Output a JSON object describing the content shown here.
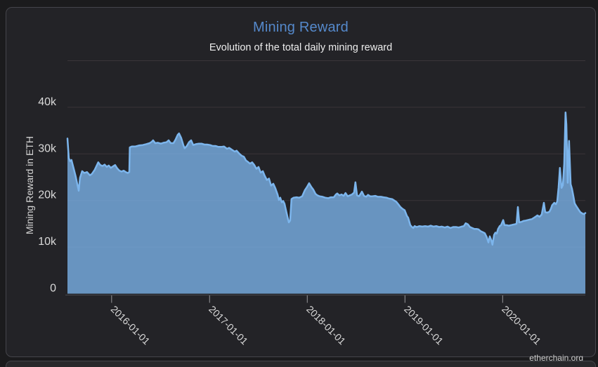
{
  "page": {
    "watermark": "etherchain.org"
  },
  "chart_data": {
    "type": "area",
    "title": "Mining Reward",
    "subtitle": "Evolution of the total daily mining reward",
    "ylabel": "Mining Reward in ETH",
    "xlabel": "",
    "legend": "off",
    "grid": "on",
    "ylim": [
      0,
      50000
    ],
    "xdomain": [
      "2015-07-20",
      "2020-11-05"
    ],
    "yticks": [
      {
        "value": 0,
        "label": "0"
      },
      {
        "value": 10000,
        "label": "10k"
      },
      {
        "value": 20000,
        "label": "20k"
      },
      {
        "value": 30000,
        "label": "30k"
      },
      {
        "value": 40000,
        "label": "40k"
      }
    ],
    "xticks": [
      {
        "date": "2016-01-01",
        "label": "2016-01-01"
      },
      {
        "date": "2017-01-01",
        "label": "2017-01-01"
      },
      {
        "date": "2018-01-01",
        "label": "2018-01-01"
      },
      {
        "date": "2019-01-01",
        "label": "2019-01-01"
      },
      {
        "date": "2020-01-01",
        "label": "2020-01-01"
      }
    ],
    "colors": {
      "page-bg": "#1b1b1d",
      "card-bg": "#232327",
      "border": "#45454b",
      "title": "#5589cb",
      "subtitle": "#ececec",
      "axis-title": "#d4d4d4",
      "axis-label": "#d9d9d9",
      "grid": "#3a3539",
      "axis-line": "#47474b",
      "tick": "#97979b",
      "line": "#7cb5ec",
      "fill": "#7cb5ec",
      "watermark": "#cfcfcf"
    },
    "fill_opacity": 0.78,
    "series": [
      {
        "name": "Mining Reward",
        "points": [
          [
            "2015-07-20",
            33300
          ],
          [
            "2015-07-25",
            29100
          ],
          [
            "2015-07-30",
            28400
          ],
          [
            "2015-08-04",
            28700
          ],
          [
            "2015-08-12",
            26900
          ],
          [
            "2015-08-20",
            25100
          ],
          [
            "2015-08-31",
            22100
          ],
          [
            "2015-09-05",
            24900
          ],
          [
            "2015-09-13",
            26300
          ],
          [
            "2015-09-21",
            25900
          ],
          [
            "2015-10-01",
            26100
          ],
          [
            "2015-10-12",
            25400
          ],
          [
            "2015-10-19",
            25700
          ],
          [
            "2015-10-30",
            26600
          ],
          [
            "2015-11-12",
            28200
          ],
          [
            "2015-11-20",
            27600
          ],
          [
            "2015-11-28",
            27400
          ],
          [
            "2015-12-06",
            27700
          ],
          [
            "2015-12-14",
            27200
          ],
          [
            "2015-12-21",
            27500
          ],
          [
            "2015-12-29",
            27000
          ],
          [
            "2016-01-06",
            27300
          ],
          [
            "2016-01-14",
            27600
          ],
          [
            "2016-01-22",
            26900
          ],
          [
            "2016-01-30",
            26400
          ],
          [
            "2016-02-07",
            26200
          ],
          [
            "2016-02-15",
            26400
          ],
          [
            "2016-02-23",
            26100
          ],
          [
            "2016-03-01",
            25900
          ],
          [
            "2016-03-07",
            26100
          ],
          [
            "2016-03-09",
            31400
          ],
          [
            "2016-03-17",
            31600
          ],
          [
            "2016-03-30",
            31600
          ],
          [
            "2016-04-12",
            31800
          ],
          [
            "2016-04-26",
            31900
          ],
          [
            "2016-05-09",
            32100
          ],
          [
            "2016-05-22",
            32300
          ],
          [
            "2016-05-30",
            32600
          ],
          [
            "2016-06-04",
            32900
          ],
          [
            "2016-06-12",
            32300
          ],
          [
            "2016-06-22",
            32400
          ],
          [
            "2016-07-03",
            32200
          ],
          [
            "2016-07-13",
            32400
          ],
          [
            "2016-07-24",
            32500
          ],
          [
            "2016-08-01",
            32900
          ],
          [
            "2016-08-09",
            32300
          ],
          [
            "2016-08-19",
            32300
          ],
          [
            "2016-08-27",
            33100
          ],
          [
            "2016-09-04",
            34100
          ],
          [
            "2016-09-09",
            34400
          ],
          [
            "2016-09-17",
            33400
          ],
          [
            "2016-09-25",
            31900
          ],
          [
            "2016-09-30",
            31200
          ],
          [
            "2016-10-08",
            31700
          ],
          [
            "2016-10-16",
            32500
          ],
          [
            "2016-10-24",
            32900
          ],
          [
            "2016-11-01",
            31900
          ],
          [
            "2016-11-11",
            32100
          ],
          [
            "2016-11-22",
            32200
          ],
          [
            "2016-12-02",
            32200
          ],
          [
            "2016-12-13",
            32000
          ],
          [
            "2016-12-23",
            32000
          ],
          [
            "2017-01-03",
            31900
          ],
          [
            "2017-01-13",
            31700
          ],
          [
            "2017-01-24",
            31700
          ],
          [
            "2017-02-03",
            31500
          ],
          [
            "2017-02-14",
            31500
          ],
          [
            "2017-02-24",
            31600
          ],
          [
            "2017-03-07",
            31100
          ],
          [
            "2017-03-15",
            31300
          ],
          [
            "2017-03-25",
            30900
          ],
          [
            "2017-04-05",
            30500
          ],
          [
            "2017-04-12",
            30700
          ],
          [
            "2017-04-23",
            30000
          ],
          [
            "2017-05-01",
            29600
          ],
          [
            "2017-05-09",
            29400
          ],
          [
            "2017-05-17",
            28600
          ],
          [
            "2017-05-24",
            28300
          ],
          [
            "2017-06-01",
            27900
          ],
          [
            "2017-06-09",
            28200
          ],
          [
            "2017-06-17",
            27600
          ],
          [
            "2017-06-25",
            26800
          ],
          [
            "2017-07-03",
            27200
          ],
          [
            "2017-07-11",
            26000
          ],
          [
            "2017-07-19",
            26300
          ],
          [
            "2017-07-26",
            25300
          ],
          [
            "2017-08-03",
            24400
          ],
          [
            "2017-08-11",
            24700
          ],
          [
            "2017-08-19",
            23200
          ],
          [
            "2017-08-27",
            23600
          ],
          [
            "2017-09-04",
            22600
          ],
          [
            "2017-09-12",
            21300
          ],
          [
            "2017-09-17",
            20100
          ],
          [
            "2017-09-22",
            20600
          ],
          [
            "2017-09-28",
            19600
          ],
          [
            "2017-10-03",
            19900
          ],
          [
            "2017-10-08",
            19300
          ],
          [
            "2017-10-16",
            17300
          ],
          [
            "2017-10-24",
            15300
          ],
          [
            "2017-10-29",
            15700
          ],
          [
            "2017-11-03",
            20300
          ],
          [
            "2017-11-11",
            20600
          ],
          [
            "2017-11-22",
            20700
          ],
          [
            "2017-12-02",
            20600
          ],
          [
            "2017-12-13",
            20900
          ],
          [
            "2017-12-23",
            22200
          ],
          [
            "2017-12-31",
            22900
          ],
          [
            "2018-01-08",
            23700
          ],
          [
            "2018-01-16",
            22900
          ],
          [
            "2018-01-24",
            22300
          ],
          [
            "2018-02-01",
            21400
          ],
          [
            "2018-02-08",
            21100
          ],
          [
            "2018-02-16",
            20900
          ],
          [
            "2018-02-27",
            20800
          ],
          [
            "2018-03-09",
            20600
          ],
          [
            "2018-03-20",
            20500
          ],
          [
            "2018-03-30",
            20700
          ],
          [
            "2018-04-10",
            20700
          ],
          [
            "2018-04-18",
            21300
          ],
          [
            "2018-04-23",
            21500
          ],
          [
            "2018-05-01",
            21100
          ],
          [
            "2018-05-09",
            21300
          ],
          [
            "2018-05-17",
            21000
          ],
          [
            "2018-05-24",
            21600
          ],
          [
            "2018-06-01",
            20900
          ],
          [
            "2018-06-09",
            21100
          ],
          [
            "2018-06-17",
            21300
          ],
          [
            "2018-06-25",
            21700
          ],
          [
            "2018-06-30",
            23900
          ],
          [
            "2018-07-06",
            21100
          ],
          [
            "2018-07-13",
            20900
          ],
          [
            "2018-07-19",
            21400
          ],
          [
            "2018-07-24",
            21900
          ],
          [
            "2018-08-01",
            21000
          ],
          [
            "2018-08-09",
            20800
          ],
          [
            "2018-08-16",
            21200
          ],
          [
            "2018-08-24",
            20900
          ],
          [
            "2018-09-01",
            20900
          ],
          [
            "2018-09-12",
            21000
          ],
          [
            "2018-09-22",
            20800
          ],
          [
            "2018-10-03",
            20800
          ],
          [
            "2018-10-13",
            20700
          ],
          [
            "2018-10-24",
            20600
          ],
          [
            "2018-11-03",
            20400
          ],
          [
            "2018-11-14",
            20300
          ],
          [
            "2018-11-22",
            20000
          ],
          [
            "2018-11-30",
            19700
          ],
          [
            "2018-12-07",
            19200
          ],
          [
            "2018-12-15",
            18600
          ],
          [
            "2018-12-23",
            18200
          ],
          [
            "2018-12-31",
            17900
          ],
          [
            "2019-01-08",
            16700
          ],
          [
            "2019-01-13",
            16300
          ],
          [
            "2019-01-21",
            14700
          ],
          [
            "2019-01-26",
            14400
          ],
          [
            "2019-02-01",
            14100
          ],
          [
            "2019-02-06",
            14500
          ],
          [
            "2019-02-14",
            14300
          ],
          [
            "2019-02-24",
            14500
          ],
          [
            "2019-03-07",
            14400
          ],
          [
            "2019-03-17",
            14500
          ],
          [
            "2019-03-28",
            14400
          ],
          [
            "2019-04-07",
            14600
          ],
          [
            "2019-04-18",
            14400
          ],
          [
            "2019-04-28",
            14500
          ],
          [
            "2019-05-09",
            14300
          ],
          [
            "2019-05-19",
            14400
          ],
          [
            "2019-05-30",
            14200
          ],
          [
            "2019-06-09",
            14400
          ],
          [
            "2019-06-20",
            14100
          ],
          [
            "2019-06-30",
            14300
          ],
          [
            "2019-07-11",
            14300
          ],
          [
            "2019-07-21",
            14200
          ],
          [
            "2019-08-01",
            14400
          ],
          [
            "2019-08-09",
            14500
          ],
          [
            "2019-08-16",
            15100
          ],
          [
            "2019-08-24",
            14900
          ],
          [
            "2019-09-01",
            14300
          ],
          [
            "2019-09-09",
            14100
          ],
          [
            "2019-09-17",
            13900
          ],
          [
            "2019-09-25",
            13900
          ],
          [
            "2019-10-03",
            13800
          ],
          [
            "2019-10-11",
            13400
          ],
          [
            "2019-10-19",
            13200
          ],
          [
            "2019-10-26",
            13000
          ],
          [
            "2019-11-03",
            12100
          ],
          [
            "2019-11-09",
            11000
          ],
          [
            "2019-11-14",
            12300
          ],
          [
            "2019-11-19",
            11600
          ],
          [
            "2019-11-24",
            10500
          ],
          [
            "2019-11-30",
            12600
          ],
          [
            "2019-12-05",
            13100
          ],
          [
            "2019-12-10",
            12900
          ],
          [
            "2019-12-15",
            13900
          ],
          [
            "2019-12-21",
            14500
          ],
          [
            "2019-12-26",
            14700
          ],
          [
            "2020-01-03",
            15800
          ],
          [
            "2020-01-08",
            14700
          ],
          [
            "2020-01-16",
            14700
          ],
          [
            "2020-01-24",
            14600
          ],
          [
            "2020-02-01",
            14700
          ],
          [
            "2020-02-08",
            14800
          ],
          [
            "2020-02-16",
            14900
          ],
          [
            "2020-02-22",
            15000
          ],
          [
            "2020-02-27",
            18600
          ],
          [
            "2020-03-03",
            15300
          ],
          [
            "2020-03-11",
            15400
          ],
          [
            "2020-03-19",
            15600
          ],
          [
            "2020-03-27",
            15700
          ],
          [
            "2020-04-04",
            15800
          ],
          [
            "2020-04-11",
            15900
          ],
          [
            "2020-04-19",
            16000
          ],
          [
            "2020-04-27",
            16300
          ],
          [
            "2020-05-05",
            16600
          ],
          [
            "2020-05-10",
            16800
          ],
          [
            "2020-05-18",
            16500
          ],
          [
            "2020-05-26",
            17000
          ],
          [
            "2020-06-03",
            19500
          ],
          [
            "2020-06-08",
            17500
          ],
          [
            "2020-06-16",
            17400
          ],
          [
            "2020-06-24",
            17600
          ],
          [
            "2020-06-29",
            18200
          ],
          [
            "2020-07-04",
            19000
          ],
          [
            "2020-07-12",
            19500
          ],
          [
            "2020-07-18",
            19200
          ],
          [
            "2020-07-23",
            19800
          ],
          [
            "2020-07-28",
            22800
          ],
          [
            "2020-08-02",
            27000
          ],
          [
            "2020-08-08",
            22700
          ],
          [
            "2020-08-13",
            23300
          ],
          [
            "2020-08-18",
            27800
          ],
          [
            "2020-08-23",
            38900
          ],
          [
            "2020-08-26",
            36300
          ],
          [
            "2020-08-31",
            23800
          ],
          [
            "2020-09-05",
            32800
          ],
          [
            "2020-09-11",
            23500
          ],
          [
            "2020-09-16",
            22500
          ],
          [
            "2020-09-21",
            21000
          ],
          [
            "2020-09-26",
            19400
          ],
          [
            "2020-10-02",
            18800
          ],
          [
            "2020-10-10",
            18100
          ],
          [
            "2020-10-17",
            17500
          ],
          [
            "2020-10-25",
            17200
          ],
          [
            "2020-10-31",
            17100
          ],
          [
            "2020-11-05",
            17300
          ]
        ]
      }
    ]
  }
}
